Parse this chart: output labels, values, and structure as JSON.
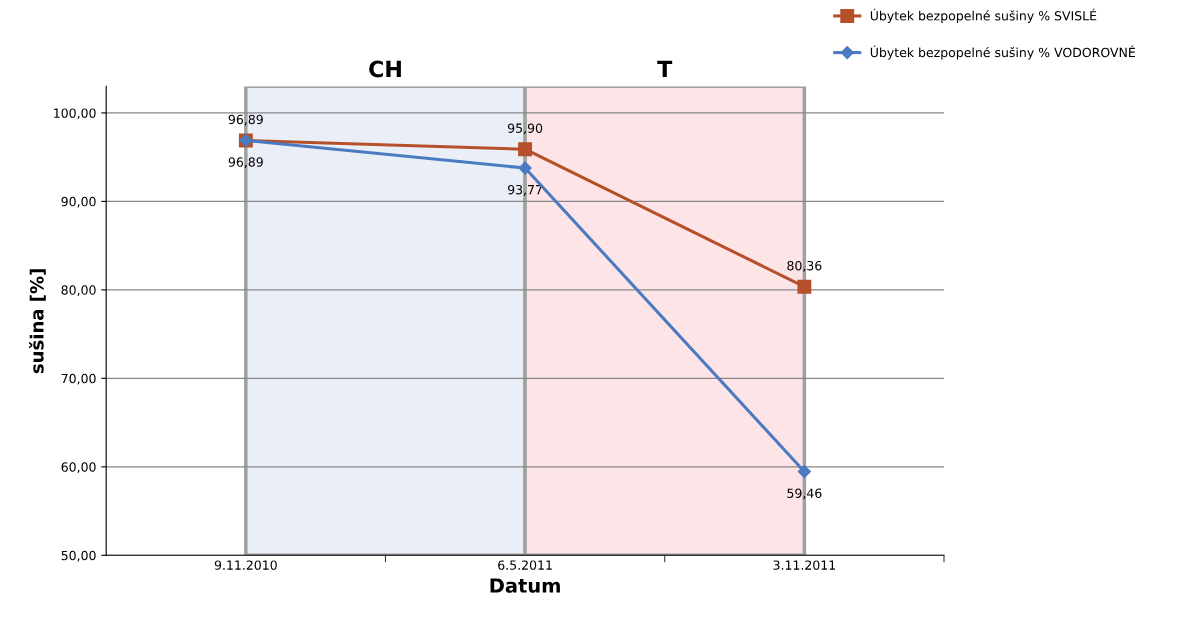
{
  "chart_data": {
    "type": "line",
    "xlabel": "Datum",
    "ylabel": "sušina [%]",
    "categories": [
      "9.11.2010",
      "6.5.2011",
      "3.11.2011"
    ],
    "series": [
      {
        "name": "Úbytek bezpopelné sušiny % SVISLÉ",
        "color": "#b5502a",
        "marker": "square",
        "values": [
          96.89,
          95.9,
          80.36
        ],
        "value_labels": [
          "96,89",
          "95,90",
          "80,36"
        ]
      },
      {
        "name": "Úbytek bezpopelné sušiny % VODOROVNÉ",
        "color": "#4a7ac0",
        "marker": "diamond",
        "values": [
          96.89,
          93.77,
          59.46
        ],
        "value_labels": [
          "96,89",
          "93,77",
          "59,46"
        ]
      }
    ],
    "ylim": [
      50,
      103
    ],
    "yticks": [
      {
        "value": 50,
        "label": "50,00"
      },
      {
        "value": 60,
        "label": "60,00"
      },
      {
        "value": 70,
        "label": "70,00"
      },
      {
        "value": 80,
        "label": "80,00"
      },
      {
        "value": 90,
        "label": "90,00"
      },
      {
        "value": 100,
        "label": "100,00"
      }
    ],
    "bands": [
      {
        "axis": "x",
        "from": "9.11.2010",
        "to": "6.5.2011",
        "label": "CH",
        "color": "#e9eef7"
      },
      {
        "axis": "x",
        "from": "6.5.2011",
        "to": "3.11.2011",
        "label": "T",
        "color": "#fde4e6"
      }
    ],
    "grid": "y",
    "legend": "top right"
  }
}
